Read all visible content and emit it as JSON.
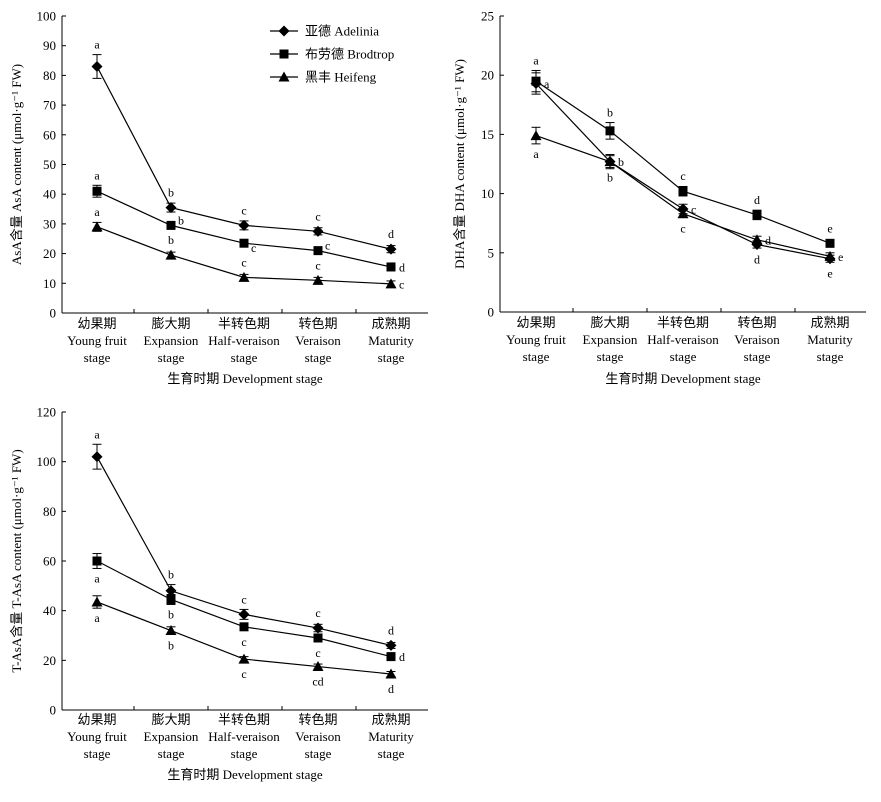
{
  "legend": {
    "items": [
      {
        "name": "亚德 Adelinia",
        "marker": "diamond"
      },
      {
        "name": "布劳德 Brodtrop",
        "marker": "square"
      },
      {
        "name": "黑丰 Heifeng",
        "marker": "triangle"
      }
    ]
  },
  "chart_data": [
    {
      "type": "line",
      "ylabel": "AsA含量 AsA content (μmol·g⁻¹ FW)",
      "xlabel": "生育时期 Development stage",
      "categories": [
        [
          "幼果期",
          "Young fruit",
          "stage"
        ],
        [
          "膨大期",
          "Expansion",
          "stage"
        ],
        [
          "半转色期",
          "Half-veraison",
          "stage"
        ],
        [
          "转色期",
          "Veraison",
          "stage"
        ],
        [
          "成熟期",
          "Maturity",
          "stage"
        ]
      ],
      "ylim": [
        0,
        100
      ],
      "yticks": [
        0,
        10,
        20,
        30,
        40,
        50,
        60,
        70,
        80,
        90,
        100
      ],
      "legend_position": "top-right",
      "series": [
        {
          "name": "亚德 Adelinia",
          "marker": "diamond",
          "values": [
            83,
            35.5,
            29.5,
            27.5,
            21.5
          ],
          "errors": [
            4,
            1.5,
            1.5,
            1.2,
            1.2
          ],
          "letters": [
            "a",
            "b",
            "c",
            "c",
            "d"
          ],
          "letter_pos": [
            "above",
            "above",
            "above",
            "above",
            "above"
          ]
        },
        {
          "name": "布劳德 Brodtrop",
          "marker": "square",
          "values": [
            41,
            29.5,
            23.5,
            21,
            15.5
          ],
          "errors": [
            2,
            1.2,
            1,
            1,
            1
          ],
          "letters": [
            "a",
            "b",
            "c",
            "c",
            "d"
          ],
          "letter_pos": [
            "above",
            "right-up",
            "right-down",
            "right-up",
            "right"
          ]
        },
        {
          "name": "黑丰 Heifeng",
          "marker": "triangle",
          "values": [
            29,
            19.5,
            12,
            11,
            9.8
          ],
          "errors": [
            1.5,
            1,
            1,
            1,
            1
          ],
          "letters": [
            "a",
            "b",
            "c",
            "c",
            "c"
          ],
          "letter_pos": [
            "above",
            "above",
            "above",
            "above",
            "right"
          ]
        }
      ]
    },
    {
      "type": "line",
      "ylabel": "DHA含量 DHA content (μmol·g⁻¹ FW)",
      "xlabel": "生育时期 Development stage",
      "categories": [
        [
          "幼果期",
          "Young fruit",
          "stage"
        ],
        [
          "膨大期",
          "Expansion",
          "stage"
        ],
        [
          "半转色期",
          "Half-veraison",
          "stage"
        ],
        [
          "转色期",
          "Veraison",
          "stage"
        ],
        [
          "成熟期",
          "Maturity",
          "stage"
        ]
      ],
      "ylim": [
        0,
        25
      ],
      "yticks": [
        0,
        5,
        10,
        15,
        20,
        25
      ],
      "series": [
        {
          "name": "亚德 Adelinia",
          "marker": "diamond",
          "values": [
            19.3,
            12.7,
            8.7,
            5.7,
            4.5
          ],
          "errors": [
            0.9,
            0.5,
            0.4,
            0.3,
            0.3
          ],
          "letters": [
            "a",
            "b",
            "c",
            "d",
            "e"
          ],
          "letter_pos": [
            "right",
            "below",
            "right",
            "below",
            "below"
          ]
        },
        {
          "name": "布劳德 Brodtrop",
          "marker": "square",
          "values": [
            19.5,
            15.3,
            10.2,
            8.2,
            5.8
          ],
          "errors": [
            0.9,
            0.7,
            0.4,
            0.4,
            0.3
          ],
          "letters": [
            "a",
            "b",
            "c",
            "d",
            "e"
          ],
          "letter_pos": [
            "above",
            "above",
            "above",
            "above",
            "above"
          ]
        },
        {
          "name": "黑丰 Heifeng",
          "marker": "triangle",
          "values": [
            14.9,
            12.7,
            8.3,
            6.1,
            4.7
          ],
          "errors": [
            0.7,
            0.6,
            0.3,
            0.3,
            0.3
          ],
          "letters": [
            "a",
            "b",
            "c",
            "d",
            "e"
          ],
          "letter_pos": [
            "below",
            "right",
            "below",
            "right",
            "right"
          ]
        }
      ]
    },
    {
      "type": "line",
      "ylabel": "T-AsA含量 T-AsA content (μmol·g⁻¹ FW)",
      "xlabel": "生育时期 Development stage",
      "categories": [
        [
          "幼果期",
          "Young fruit",
          "stage"
        ],
        [
          "膨大期",
          "Expansion",
          "stage"
        ],
        [
          "半转色期",
          "Half-veraison",
          "stage"
        ],
        [
          "转色期",
          "Veraison",
          "stage"
        ],
        [
          "成熟期",
          "Maturity",
          "stage"
        ]
      ],
      "ylim": [
        0,
        120
      ],
      "yticks": [
        0,
        20,
        40,
        60,
        80,
        100,
        120
      ],
      "series": [
        {
          "name": "亚德 Adelinia",
          "marker": "diamond",
          "values": [
            102,
            48,
            38.5,
            33,
            26
          ],
          "errors": [
            5,
            2.5,
            2,
            1.5,
            1.2
          ],
          "letters": [
            "a",
            "b",
            "c",
            "c",
            "d"
          ],
          "letter_pos": [
            "above",
            "above",
            "above",
            "above",
            "above"
          ]
        },
        {
          "name": "布劳德 Brodtrop",
          "marker": "square",
          "values": [
            60,
            44.5,
            33.5,
            29,
            21.5
          ],
          "errors": [
            3,
            2,
            1.5,
            1.5,
            1.2
          ],
          "letters": [
            "a",
            "b",
            "c",
            "c",
            "d"
          ],
          "letter_pos": [
            "below",
            "below",
            "below",
            "below",
            "right"
          ]
        },
        {
          "name": "黑丰 Heifeng",
          "marker": "triangle",
          "values": [
            43.5,
            32,
            20.5,
            17.5,
            14.5
          ],
          "errors": [
            2.5,
            1.5,
            1,
            1,
            1
          ],
          "letters": [
            "a",
            "b",
            "c",
            "cd",
            "d"
          ],
          "letter_pos": [
            "below",
            "below",
            "below",
            "below",
            "below"
          ]
        }
      ]
    }
  ]
}
